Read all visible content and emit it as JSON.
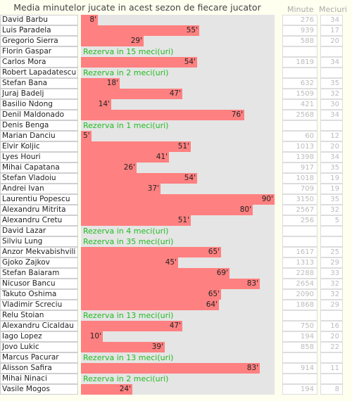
{
  "chart_data": {
    "type": "bar",
    "title": "Media minutelor jucate in acest sezon de fiecare jucator",
    "xlim": [
      0,
      90
    ],
    "columns": {
      "minutes": "Minute",
      "matches": "Meciuri"
    },
    "unit_suffix": "'",
    "players": [
      {
        "name": "David Barbu",
        "avg": 8,
        "reserve": null,
        "minutes": 276,
        "matches": 34
      },
      {
        "name": "Luis Paradela",
        "avg": 55,
        "reserve": null,
        "minutes": 939,
        "matches": 17
      },
      {
        "name": "Gregorio Sierra",
        "avg": 29,
        "reserve": null,
        "minutes": 588,
        "matches": 20
      },
      {
        "name": "Florin Gaspar",
        "avg": null,
        "reserve": "Rezerva in 15 meci(uri)",
        "minutes": null,
        "matches": null
      },
      {
        "name": "Carlos Mora",
        "avg": 54,
        "reserve": null,
        "minutes": 1819,
        "matches": 34
      },
      {
        "name": "Robert Lapadatescu",
        "avg": null,
        "reserve": "Rezerva in 2 meci(uri)",
        "minutes": null,
        "matches": null
      },
      {
        "name": "Stefan Bana",
        "avg": 18,
        "reserve": null,
        "minutes": 632,
        "matches": 35
      },
      {
        "name": "Juraj Badelj",
        "avg": 47,
        "reserve": null,
        "minutes": 1509,
        "matches": 32
      },
      {
        "name": "Basilio Ndong",
        "avg": 14,
        "reserve": null,
        "minutes": 421,
        "matches": 30
      },
      {
        "name": "Denil Maldonado",
        "avg": 76,
        "reserve": null,
        "minutes": 2568,
        "matches": 34
      },
      {
        "name": "Denis Benga",
        "avg": null,
        "reserve": "Rezerva in 1 meci(uri)",
        "minutes": null,
        "matches": null
      },
      {
        "name": "Marian Danciu",
        "avg": 5,
        "reserve": null,
        "minutes": 60,
        "matches": 12
      },
      {
        "name": "Elvir Koljic",
        "avg": 51,
        "reserve": null,
        "minutes": 1013,
        "matches": 20
      },
      {
        "name": "Lyes Houri",
        "avg": 41,
        "reserve": null,
        "minutes": 1398,
        "matches": 34
      },
      {
        "name": "Mihai Capatana",
        "avg": 26,
        "reserve": null,
        "minutes": 917,
        "matches": 35
      },
      {
        "name": "Stefan Vladoiu",
        "avg": 54,
        "reserve": null,
        "minutes": 1018,
        "matches": 19
      },
      {
        "name": "Andrei Ivan",
        "avg": 37,
        "reserve": null,
        "minutes": 709,
        "matches": 19
      },
      {
        "name": "Laurentiu Popescu",
        "avg": 90,
        "reserve": null,
        "minutes": 3150,
        "matches": 35
      },
      {
        "name": "Alexandru Mitrita",
        "avg": 80,
        "reserve": null,
        "minutes": 2567,
        "matches": 32
      },
      {
        "name": "Alexandru Cretu",
        "avg": 51,
        "reserve": null,
        "minutes": 256,
        "matches": 5
      },
      {
        "name": "David Lazar",
        "avg": null,
        "reserve": "Rezerva in 4 meci(uri)",
        "minutes": null,
        "matches": null
      },
      {
        "name": "Silviu Lung",
        "avg": null,
        "reserve": "Rezerva in 35 meci(uri)",
        "minutes": null,
        "matches": null
      },
      {
        "name": "Anzor Mekvabishvili",
        "avg": 65,
        "reserve": null,
        "minutes": 1617,
        "matches": 25
      },
      {
        "name": "Gjoko Zajkov",
        "avg": 45,
        "reserve": null,
        "minutes": 1313,
        "matches": 29
      },
      {
        "name": "Stefan Baiaram",
        "avg": 69,
        "reserve": null,
        "minutes": 2288,
        "matches": 33
      },
      {
        "name": "Nicusor Bancu",
        "avg": 83,
        "reserve": null,
        "minutes": 2654,
        "matches": 32
      },
      {
        "name": "Takuto Oshima",
        "avg": 65,
        "reserve": null,
        "minutes": 2090,
        "matches": 32
      },
      {
        "name": "Vladimir Screciu",
        "avg": 64,
        "reserve": null,
        "minutes": 1868,
        "matches": 29
      },
      {
        "name": "Relu Stoian",
        "avg": null,
        "reserve": "Rezerva in 13 meci(uri)",
        "minutes": null,
        "matches": null
      },
      {
        "name": "Alexandru Cicaldau",
        "avg": 47,
        "reserve": null,
        "minutes": 750,
        "matches": 16
      },
      {
        "name": "Iago Lopez",
        "avg": 10,
        "reserve": null,
        "minutes": 194,
        "matches": 20
      },
      {
        "name": "Jovo Lukic",
        "avg": 39,
        "reserve": null,
        "minutes": 858,
        "matches": 22
      },
      {
        "name": "Marcus Pacurar",
        "avg": null,
        "reserve": "Rezerva in 13 meci(uri)",
        "minutes": null,
        "matches": null
      },
      {
        "name": "Alisson Safira",
        "avg": 83,
        "reserve": null,
        "minutes": 914,
        "matches": 11
      },
      {
        "name": "Mihai Ninaci",
        "avg": null,
        "reserve": "Rezerva in 2 meci(uri)",
        "minutes": null,
        "matches": null
      },
      {
        "name": "Vasile Mogos",
        "avg": 24,
        "reserve": null,
        "minutes": 194,
        "matches": 8
      }
    ]
  },
  "colors": {
    "bar": "#ff8080",
    "track": "#e5e5e5",
    "reserve_text": "#22bb22",
    "background": "#fffff0"
  }
}
